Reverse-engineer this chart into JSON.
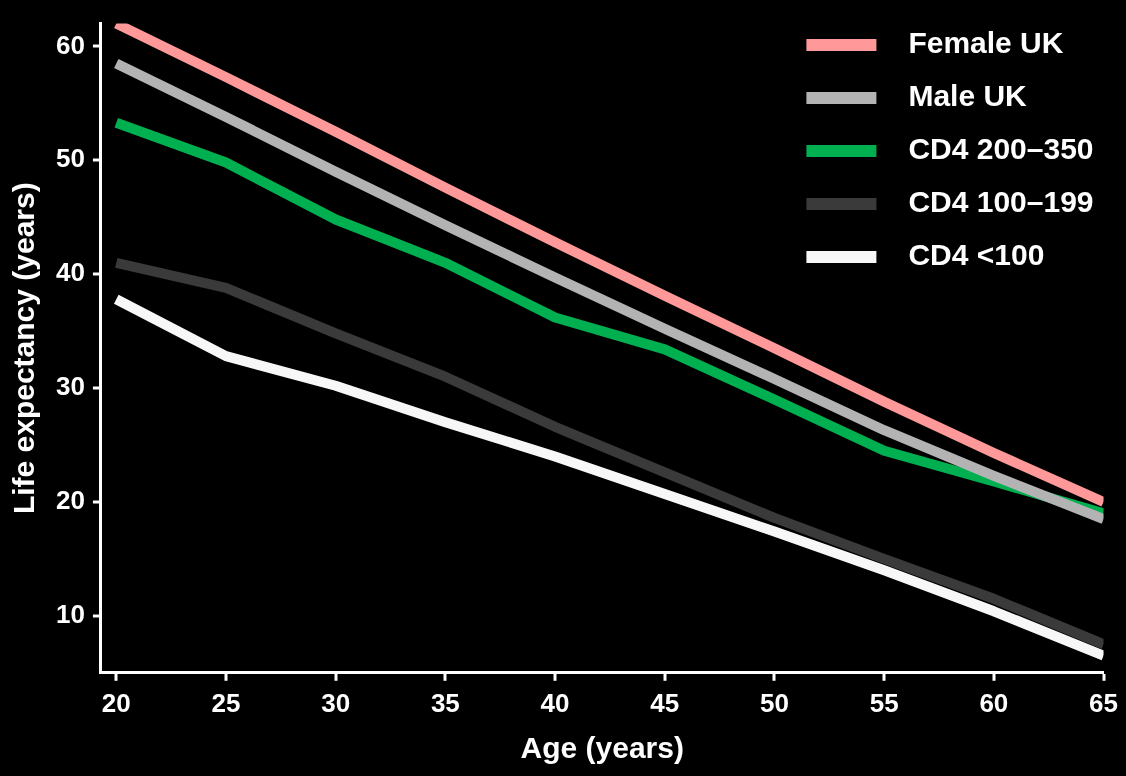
{
  "chart_data": {
    "type": "line",
    "xlabel": "Age (years)",
    "ylabel": "Life expectancy (years)",
    "x": [
      20,
      25,
      30,
      35,
      40,
      45,
      50,
      55,
      60,
      65
    ],
    "series": [
      {
        "name": "Female UK",
        "color": "#ff9999",
        "values": [
          62,
          57.3,
          52.5,
          47.6,
          42.8,
          38.1,
          33.5,
          28.8,
          24.3,
          20
        ]
      },
      {
        "name": "Male UK",
        "color": "#b3b3b3",
        "values": [
          58.5,
          53.8,
          49,
          44.3,
          39.7,
          35.2,
          30.8,
          26.3,
          22.3,
          18.5
        ]
      },
      {
        "name": "CD4 200–350",
        "color": "#00b050",
        "values": [
          53.3,
          49.8,
          44.8,
          41,
          36.2,
          33.4,
          29,
          24.5,
          21.8,
          19
        ]
      },
      {
        "name": "CD4 100–199",
        "color": "#3a3a3a",
        "values": [
          41,
          38.8,
          34.8,
          31,
          26.6,
          22.6,
          18.6,
          15,
          11.5,
          7.5
        ]
      },
      {
        "name": "CD4 <100",
        "color": "#f7f7f7",
        "values": [
          37.8,
          32.8,
          30.2,
          27,
          24,
          20.7,
          17.4,
          14,
          10.4,
          6.5
        ]
      }
    ],
    "xlim": [
      19.3,
      65
    ],
    "xticks": [
      20,
      25,
      30,
      35,
      40,
      45,
      50,
      55,
      60,
      65
    ],
    "ylim": [
      5,
      62
    ],
    "yticks": [
      10,
      20,
      30,
      40,
      50,
      60
    ],
    "legend": "top right",
    "grid": false,
    "marker": "none",
    "line_style": "solid"
  }
}
